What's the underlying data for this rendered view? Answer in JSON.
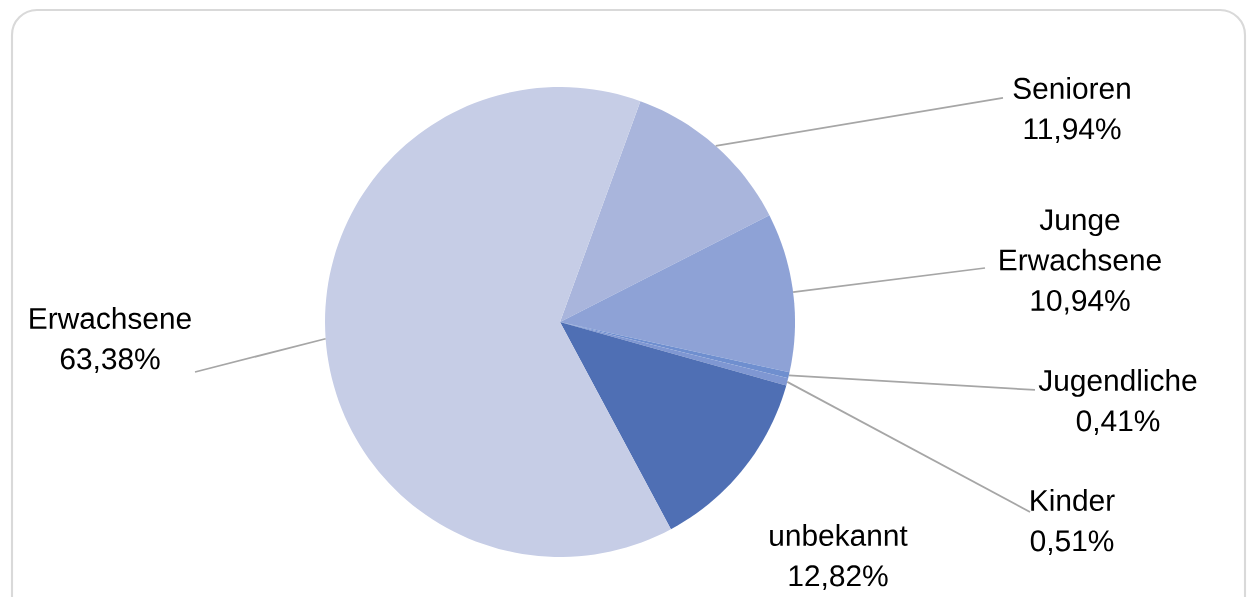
{
  "chart_data": {
    "type": "pie",
    "categories": [
      "Senioren",
      "Junge Erwachsene",
      "Jugendliche",
      "Kinder",
      "unbekannt",
      "Erwachsene"
    ],
    "values": [
      11.94,
      10.94,
      0.41,
      0.51,
      12.82,
      63.38
    ],
    "colors": [
      "#a9b5dc",
      "#8ea2d6",
      "#6f8fcf",
      "#7f97d2",
      "#4f6fb4",
      "#c6cde6"
    ],
    "value_labels": [
      "11,94%",
      "10,94%",
      "0,41%",
      "0,51%",
      "12,82%",
      "63,38%"
    ]
  }
}
